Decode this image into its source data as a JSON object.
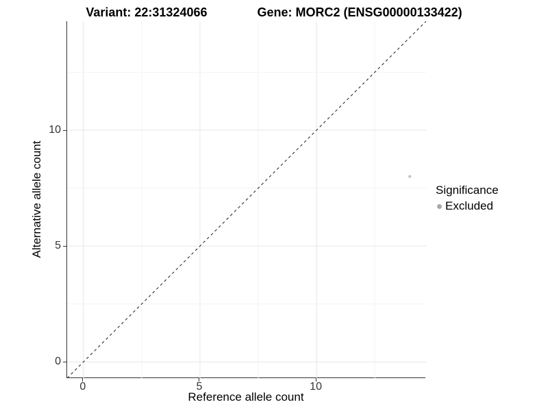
{
  "header": {
    "variant_title": "Variant: 22:31324066",
    "gene_title": "Gene: MORC2 (ENSG00000133422)"
  },
  "chart_data": {
    "type": "scatter",
    "title_left": "Variant: 22:31324066",
    "title_right": "Gene: MORC2 (ENSG00000133422)",
    "xlabel": "Reference allele count",
    "ylabel": "Alternative allele count",
    "xlim": [
      -0.7,
      14.7
    ],
    "ylim": [
      -0.7,
      14.7
    ],
    "x_ticks": [
      0,
      5,
      10
    ],
    "y_ticks": [
      0,
      5,
      10
    ],
    "x_minor_ticks": [
      2.5,
      7.5,
      12.5
    ],
    "y_minor_ticks": [
      2.5,
      7.5,
      12.5
    ],
    "grid": true,
    "reference_line": {
      "equation": "y = x",
      "style": "dashed",
      "color": "#1a1a1a"
    },
    "points": [
      {
        "x": 14,
        "y": 8,
        "series": "Excluded",
        "color": "#c6c6c6",
        "radius": 2.2
      }
    ],
    "legend": {
      "title": "Significance",
      "position": "right",
      "items": [
        {
          "label": "Excluded",
          "color": "#a8a8a8"
        }
      ]
    },
    "colors": {
      "grid_major": "#e6e6e6",
      "grid_minor": "#f3f3f3",
      "axis_line": "#333333",
      "tick_text": "#333333"
    }
  }
}
